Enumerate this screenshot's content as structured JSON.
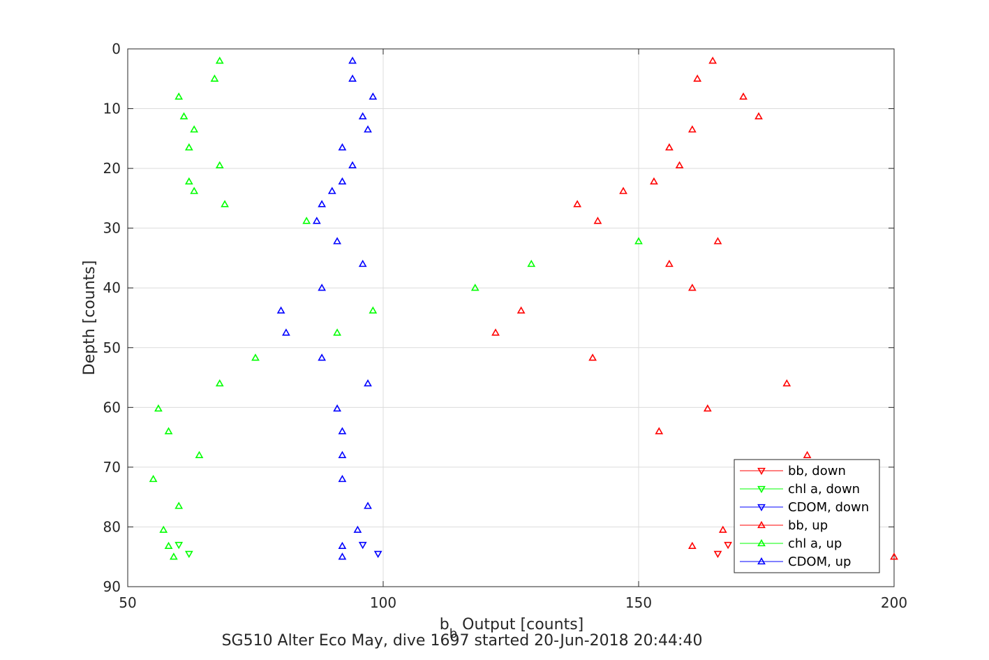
{
  "chart_data": {
    "type": "scatter",
    "xlabel_main": "b",
    "xlabel_sub": "b",
    "xlabel_rest": " Output [counts]",
    "ylabel": "Depth [counts]",
    "caption": "SG510 Alter Eco May, dive 1697 started 20-Jun-2018 20:44:40",
    "xlim": [
      50,
      200
    ],
    "ylim": [
      0,
      90
    ],
    "y_reversed": true,
    "xticks": [
      50,
      100,
      150,
      200
    ],
    "yticks": [
      0,
      10,
      20,
      30,
      40,
      50,
      60,
      70,
      80,
      90
    ],
    "grid": true,
    "legend_position": "bottom-right",
    "series": [
      {
        "name": "bb, down",
        "color": "#ff0000",
        "marker": "triangle-down",
        "points": [
          [
            165.5,
            84.5
          ],
          [
            167.5,
            83
          ]
        ]
      },
      {
        "name": "chl a, down",
        "color": "#00ff00",
        "marker": "triangle-down",
        "points": [
          [
            62,
            84.5
          ],
          [
            60,
            83
          ]
        ]
      },
      {
        "name": "CDOM, down",
        "color": "#0000ff",
        "marker": "triangle-down",
        "points": [
          [
            99,
            84.5
          ],
          [
            96,
            83
          ]
        ]
      },
      {
        "name": "bb, up",
        "color": "#ff0000",
        "marker": "triangle-up",
        "points": [
          [
            164.5,
            2
          ],
          [
            161.5,
            5
          ],
          [
            170.5,
            8
          ],
          [
            173.5,
            11.3
          ],
          [
            160.5,
            13.5
          ],
          [
            156,
            16.5
          ],
          [
            158,
            19.5
          ],
          [
            153,
            22.2
          ],
          [
            147,
            23.8
          ],
          [
            138,
            26
          ],
          [
            142,
            28.8
          ],
          [
            165.5,
            32.2
          ],
          [
            156,
            36
          ],
          [
            160.5,
            40
          ],
          [
            127,
            43.8
          ],
          [
            122,
            47.5
          ],
          [
            141,
            51.7
          ],
          [
            179,
            56
          ],
          [
            163.5,
            60.2
          ],
          [
            154,
            64
          ],
          [
            183,
            68
          ],
          [
            166.5,
            80.5
          ],
          [
            160.5,
            83.2
          ],
          [
            200,
            85
          ]
        ]
      },
      {
        "name": "chl a, up",
        "color": "#00ff00",
        "marker": "triangle-up",
        "points": [
          [
            68,
            2
          ],
          [
            67,
            5
          ],
          [
            60,
            8
          ],
          [
            61,
            11.3
          ],
          [
            63,
            13.5
          ],
          [
            62,
            16.5
          ],
          [
            68,
            19.5
          ],
          [
            62,
            22.2
          ],
          [
            63,
            23.8
          ],
          [
            69,
            26
          ],
          [
            85,
            28.8
          ],
          [
            150,
            32.2
          ],
          [
            129,
            36
          ],
          [
            118,
            40
          ],
          [
            98,
            43.8
          ],
          [
            91,
            47.5
          ],
          [
            75,
            51.7
          ],
          [
            68,
            56
          ],
          [
            56,
            60.2
          ],
          [
            58,
            64
          ],
          [
            64,
            68
          ],
          [
            55,
            72
          ],
          [
            60,
            76.5
          ],
          [
            57,
            80.5
          ],
          [
            58,
            83.2
          ],
          [
            59,
            85
          ]
        ]
      },
      {
        "name": "CDOM, up",
        "color": "#0000ff",
        "marker": "triangle-up",
        "points": [
          [
            94,
            2
          ],
          [
            94,
            5
          ],
          [
            98,
            8
          ],
          [
            96,
            11.3
          ],
          [
            97,
            13.5
          ],
          [
            92,
            16.5
          ],
          [
            94,
            19.5
          ],
          [
            92,
            22.2
          ],
          [
            90,
            23.8
          ],
          [
            88,
            26
          ],
          [
            87,
            28.8
          ],
          [
            91,
            32.2
          ],
          [
            96,
            36
          ],
          [
            88,
            40
          ],
          [
            80,
            43.8
          ],
          [
            81,
            47.5
          ],
          [
            88,
            51.7
          ],
          [
            97,
            56
          ],
          [
            91,
            60.2
          ],
          [
            92,
            64
          ],
          [
            92,
            68
          ],
          [
            92,
            72
          ],
          [
            97,
            76.5
          ],
          [
            95,
            80.5
          ],
          [
            92,
            83.2
          ],
          [
            92,
            85
          ]
        ]
      }
    ]
  }
}
